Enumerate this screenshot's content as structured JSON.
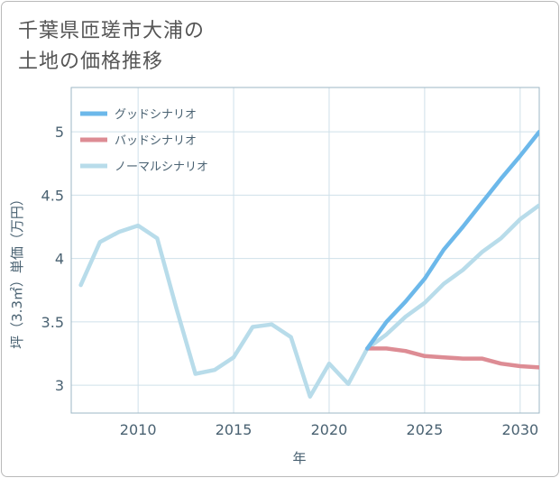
{
  "title": {
    "line1": "千葉県匝瑳市大浦の",
    "line2": "土地の価格推移"
  },
  "chart_data": {
    "type": "line",
    "title": "千葉県匝瑳市大浦の土地の価格推移",
    "xlabel": "年",
    "ylabel": "坪（3.3㎡）単価（万円）",
    "xlim": [
      2006.5,
      2031
    ],
    "ylim": [
      2.78,
      5.35
    ],
    "xticks": [
      2010,
      2015,
      2020,
      2025,
      2030
    ],
    "xtick_labels": [
      "2010",
      "2015",
      "2020",
      "2025",
      "2030"
    ],
    "yticks": [
      3,
      3.5,
      4,
      4.5,
      5
    ],
    "ytick_labels": [
      "3",
      "3.5",
      "4",
      "4.5",
      "5"
    ],
    "grid": true,
    "legend_position": "top-left",
    "series": [
      {
        "name": "グッドシナリオ",
        "color": "#6cb8ea",
        "x": [
          2022,
          2023,
          2024,
          2025,
          2026,
          2027,
          2028,
          2029,
          2030,
          2031
        ],
        "y": [
          3.29,
          3.5,
          3.66,
          3.84,
          4.07,
          4.25,
          4.44,
          4.63,
          4.81,
          5.0
        ]
      },
      {
        "name": "バッドシナリオ",
        "color": "#dd8c94",
        "x": [
          2022,
          2023,
          2024,
          2025,
          2026,
          2027,
          2028,
          2029,
          2030,
          2031
        ],
        "y": [
          3.29,
          3.29,
          3.27,
          3.23,
          3.22,
          3.21,
          3.21,
          3.17,
          3.15,
          3.14
        ]
      },
      {
        "name": "ノーマルシナリオ",
        "color": "#b8dcea",
        "x": [
          2007,
          2008,
          2009,
          2010,
          2011,
          2012,
          2013,
          2014,
          2015,
          2016,
          2017,
          2018,
          2019,
          2020,
          2021,
          2022,
          2023,
          2024,
          2025,
          2026,
          2027,
          2028,
          2029,
          2030,
          2031
        ],
        "y": [
          3.79,
          4.13,
          4.21,
          4.26,
          4.16,
          3.61,
          3.09,
          3.12,
          3.22,
          3.46,
          3.48,
          3.38,
          2.91,
          3.17,
          3.01,
          3.29,
          3.4,
          3.54,
          3.65,
          3.8,
          3.91,
          4.05,
          4.16,
          4.31,
          4.42
        ]
      }
    ]
  }
}
